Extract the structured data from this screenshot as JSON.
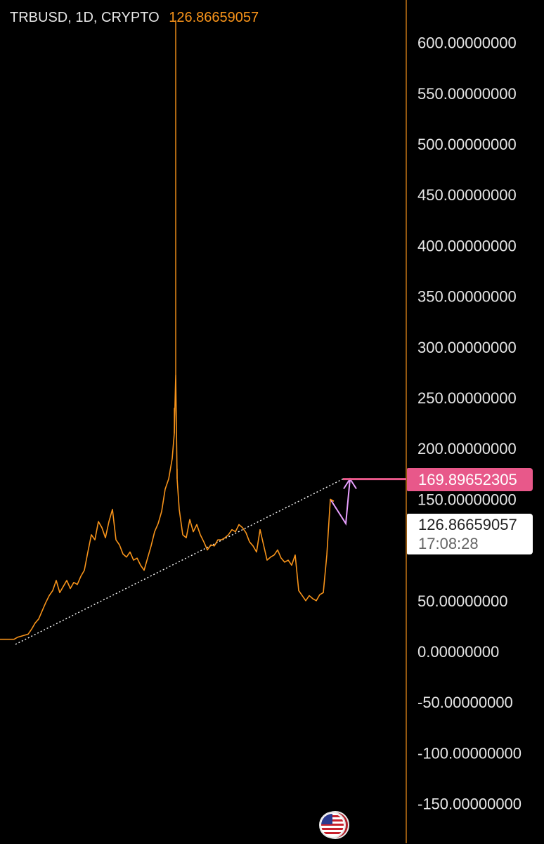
{
  "header": {
    "symbol": "TRBUSD, 1D, CRYPTO",
    "price": "126.86659057"
  },
  "price_tag": {
    "label": "169.89652305"
  },
  "last_price": {
    "value": "126.86659057",
    "countdown": "17:08:28"
  },
  "colors": {
    "background": "#000000",
    "series": "#f7931a",
    "axis_line": "#f7931a",
    "trendline": "#ffffff",
    "drawing": "#e8a0ff",
    "price_tag": "#e8588a"
  },
  "icons": {
    "bottom": "us-flag-icon"
  },
  "chart_data": {
    "type": "line",
    "title": "TRBUSD, 1D, CRYPTO",
    "xlabel": "",
    "ylabel": "",
    "ylim": [
      -175,
      640
    ],
    "y_ticks": [
      "600.00000000",
      "550.00000000",
      "500.00000000",
      "450.00000000",
      "400.00000000",
      "350.00000000",
      "300.00000000",
      "250.00000000",
      "200.00000000",
      "150.00000000",
      "50.00000000",
      "0.00000000",
      "-50.00000000",
      "-100.00000000",
      "-150.00000000"
    ],
    "y_tick_values": [
      600,
      550,
      500,
      450,
      400,
      350,
      300,
      250,
      200,
      150,
      50,
      0,
      -50,
      -100,
      -150
    ],
    "grid": false,
    "series": [
      {
        "name": "",
        "x": [
          0,
          5,
          10,
          15,
          20,
          25,
          30,
          35,
          40,
          45,
          50,
          55,
          60,
          65,
          70,
          75,
          80,
          85,
          90,
          95,
          100,
          105,
          110,
          115,
          120,
          125,
          130,
          135,
          140,
          145,
          150,
          155,
          160,
          165,
          170,
          175,
          180,
          185,
          190,
          195,
          200,
          205,
          210,
          215,
          220,
          225,
          230,
          235,
          240,
          245,
          248,
          250,
          252,
          255,
          260,
          265,
          270,
          275,
          280,
          285,
          290,
          295,
          300,
          305,
          310,
          315,
          320,
          325,
          330,
          335,
          340,
          345,
          350,
          355,
          360,
          365,
          370,
          375,
          380,
          385,
          390,
          395,
          400,
          405,
          410,
          415,
          420,
          425,
          430,
          435,
          440,
          445,
          450,
          455,
          460,
          465,
          470,
          475
        ],
        "values": [
          12,
          12,
          12,
          12,
          12,
          14,
          15,
          16,
          17,
          22,
          28,
          32,
          40,
          48,
          55,
          60,
          70,
          58,
          64,
          70,
          62,
          68,
          66,
          74,
          80,
          98,
          115,
          110,
          128,
          122,
          112,
          128,
          140,
          110,
          105,
          96,
          93,
          98,
          90,
          92,
          85,
          80,
          92,
          104,
          118,
          126,
          138,
          160,
          170,
          190,
          215,
          272,
          170,
          140,
          115,
          112,
          130,
          118,
          125,
          115,
          108,
          100,
          105,
          104,
          110,
          110,
          112,
          115,
          120,
          118,
          125,
          122,
          117,
          108,
          104,
          98,
          120,
          105,
          90,
          93,
          95,
          100,
          92,
          88,
          90,
          85,
          95,
          60,
          55,
          50,
          55,
          52,
          50,
          56,
          58,
          95,
          150,
          148
        ],
        "high": [
          12,
          12,
          12,
          12,
          12,
          14,
          15,
          16,
          17,
          22,
          28,
          32,
          40,
          48,
          55,
          60,
          70,
          58,
          64,
          70,
          62,
          68,
          66,
          74,
          80,
          98,
          115,
          110,
          128,
          122,
          112,
          128,
          140,
          110,
          105,
          96,
          93,
          98,
          90,
          92,
          85,
          80,
          92,
          104,
          118,
          126,
          138,
          160,
          170,
          190,
          240,
          622,
          180,
          140,
          115,
          112,
          130,
          118,
          125,
          115,
          108,
          100,
          105,
          104,
          110,
          110,
          112,
          115,
          120,
          118,
          125,
          122,
          117,
          108,
          104,
          98,
          120,
          105,
          90,
          93,
          95,
          100,
          92,
          88,
          90,
          85,
          95,
          60,
          55,
          50,
          55,
          52,
          50,
          56,
          58,
          95,
          150,
          148
        ]
      }
    ],
    "annotations": [
      {
        "type": "trendline",
        "x": [
          22,
          488
        ],
        "y": [
          7,
          170
        ],
        "style": "dotted"
      },
      {
        "type": "arrow",
        "x": [
          470,
          492,
          498
        ],
        "y": [
          150,
          126,
          170
        ]
      },
      {
        "type": "horizontal-line",
        "y": 169.89652305,
        "label": "169.89652305"
      }
    ]
  }
}
